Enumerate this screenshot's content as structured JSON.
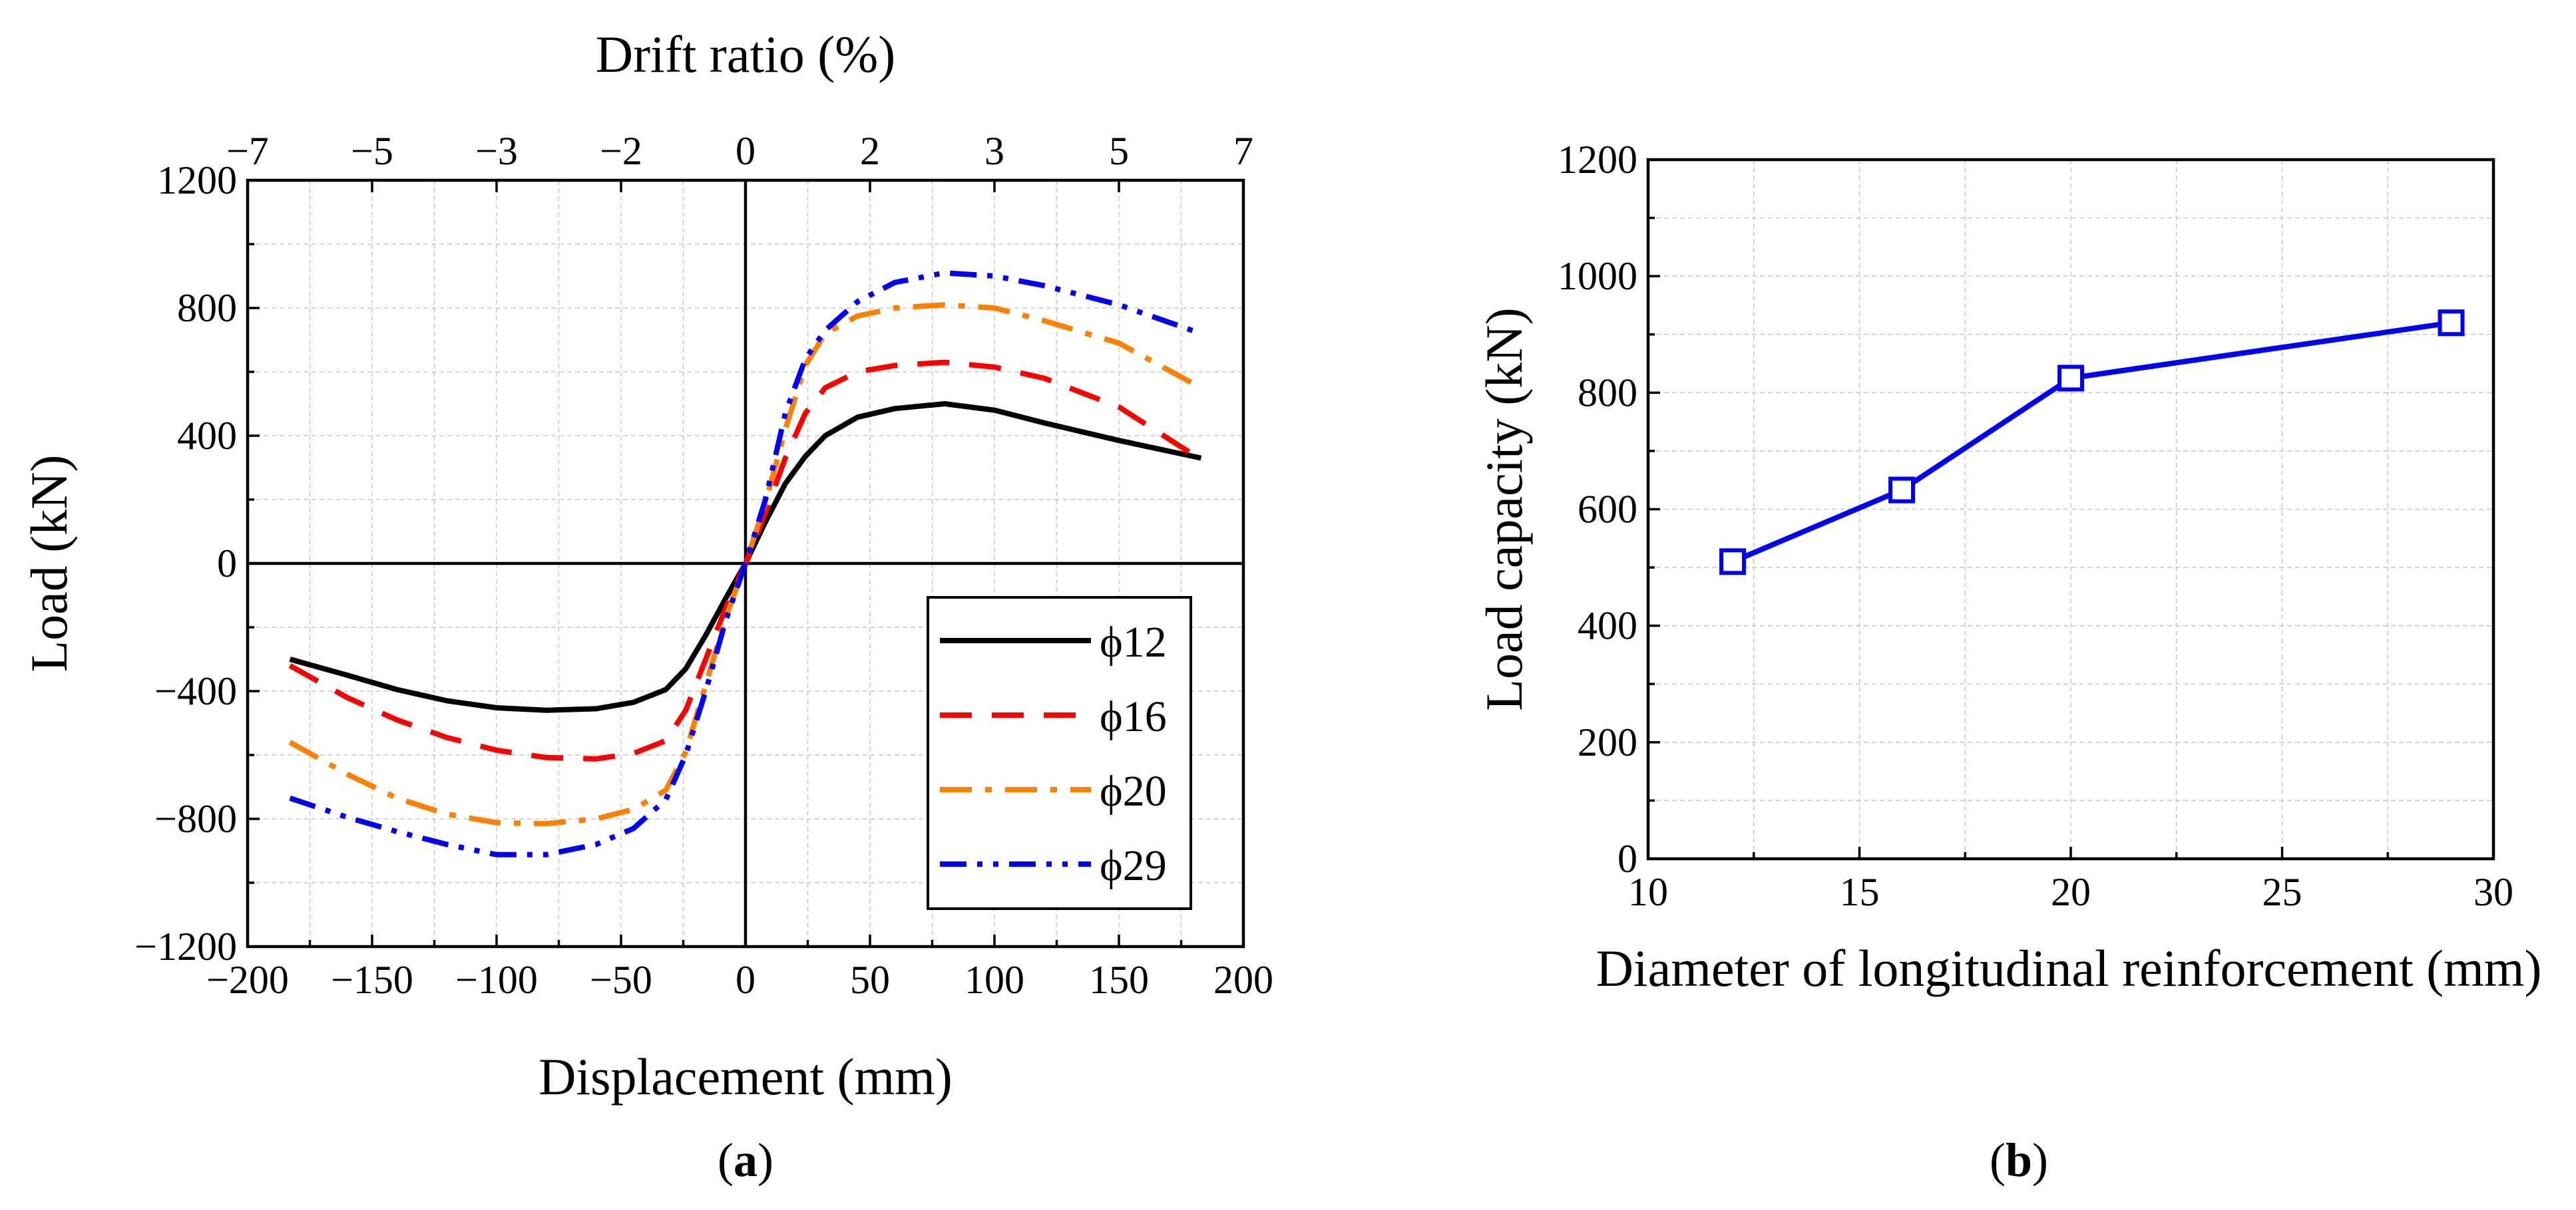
{
  "chart_data": [
    {
      "panel": "a",
      "type": "line",
      "xlabel": "Displacement (mm)",
      "ylabel": "Load (kN)",
      "x2label": "Drift ratio (%)",
      "xlim": [
        -200,
        200
      ],
      "ylim": [
        -1200,
        1200
      ],
      "xticks": [
        -200,
        -150,
        -100,
        -50,
        0,
        50,
        100,
        150,
        200
      ],
      "yticks": [
        -1200,
        -800,
        -400,
        0,
        400,
        800,
        1200
      ],
      "x2ticks": [
        {
          "label": "−7",
          "x": -200
        },
        {
          "label": "−5",
          "x": -150
        },
        {
          "label": "−3",
          "x": -100
        },
        {
          "label": "−2",
          "x": -50
        },
        {
          "label": "0",
          "x": 0
        },
        {
          "label": "2",
          "x": 50
        },
        {
          "label": "3",
          "x": 100
        },
        {
          "label": "5",
          "x": 150
        },
        {
          "label": "7",
          "x": 200
        }
      ],
      "grid": true,
      "legend_position": "bottom-right",
      "series": [
        {
          "name": "ϕ12",
          "color": "#000000",
          "dash": "solid",
          "x": [
            -183,
            -160,
            -140,
            -120,
            -100,
            -80,
            -60,
            -45,
            -32,
            -24,
            -16,
            -8,
            0,
            8,
            16,
            24,
            32,
            45,
            60,
            80,
            100,
            120,
            150,
            183
          ],
          "y": [
            -300,
            -350,
            -395,
            -430,
            -452,
            -460,
            -455,
            -435,
            -395,
            -330,
            -225,
            -110,
            0,
            130,
            250,
            335,
            400,
            458,
            485,
            500,
            480,
            440,
            385,
            330
          ]
        },
        {
          "name": "ϕ16",
          "color": "#ff0000",
          "dash": "dashed",
          "x": [
            -183,
            -160,
            -140,
            -120,
            -100,
            -80,
            -60,
            -45,
            -32,
            -24,
            -16,
            -8,
            0,
            8,
            16,
            24,
            32,
            45,
            60,
            80,
            100,
            120,
            150,
            183
          ],
          "y": [
            -320,
            -420,
            -490,
            -545,
            -585,
            -608,
            -612,
            -595,
            -555,
            -460,
            -300,
            -140,
            0,
            160,
            330,
            470,
            550,
            600,
            620,
            630,
            615,
            580,
            490,
            325
          ]
        },
        {
          "name": "ϕ20",
          "color": "#ff8000",
          "dash": "dashdot",
          "x": [
            -183,
            -160,
            -140,
            -120,
            -100,
            -80,
            -60,
            -45,
            -32,
            -24,
            -16,
            -8,
            0,
            8,
            16,
            24,
            32,
            45,
            60,
            80,
            100,
            120,
            150,
            183
          ],
          "y": [
            -560,
            -660,
            -735,
            -785,
            -812,
            -815,
            -800,
            -770,
            -710,
            -590,
            -380,
            -170,
            0,
            190,
            420,
            620,
            720,
            775,
            800,
            810,
            800,
            760,
            690,
            550
          ]
        },
        {
          "name": "ϕ29",
          "color": "#0000ff",
          "dash": "dashdotdot",
          "x": [
            -183,
            -160,
            -140,
            -120,
            -100,
            -80,
            -60,
            -45,
            -32,
            -24,
            -16,
            -8,
            0,
            8,
            16,
            24,
            32,
            45,
            60,
            80,
            100,
            120,
            150,
            183
          ],
          "y": [
            -735,
            -795,
            -840,
            -880,
            -912,
            -912,
            -880,
            -830,
            -740,
            -600,
            -400,
            -180,
            0,
            200,
            470,
            640,
            730,
            820,
            880,
            910,
            900,
            870,
            810,
            720
          ]
        }
      ]
    },
    {
      "panel": "b",
      "type": "line",
      "xlabel": "Diameter of longitudinal reinforcement (mm)",
      "ylabel": "Load capacity (kN)",
      "xlim": [
        10,
        30
      ],
      "ylim": [
        0,
        1200
      ],
      "xticks": [
        10,
        15,
        20,
        25,
        30
      ],
      "yticks": [
        0,
        200,
        400,
        600,
        800,
        1000,
        1200
      ],
      "grid": true,
      "marker": "square",
      "series": [
        {
          "name": "",
          "color": "#0000ff",
          "x": [
            12,
            16,
            20,
            29
          ],
          "y": [
            510,
            633,
            825,
            920
          ]
        }
      ]
    }
  ],
  "panel_labels": {
    "a": {
      "open": "(",
      "letter": "a",
      "close": ")"
    },
    "b": {
      "open": "(",
      "letter": "b",
      "close": ")"
    }
  }
}
